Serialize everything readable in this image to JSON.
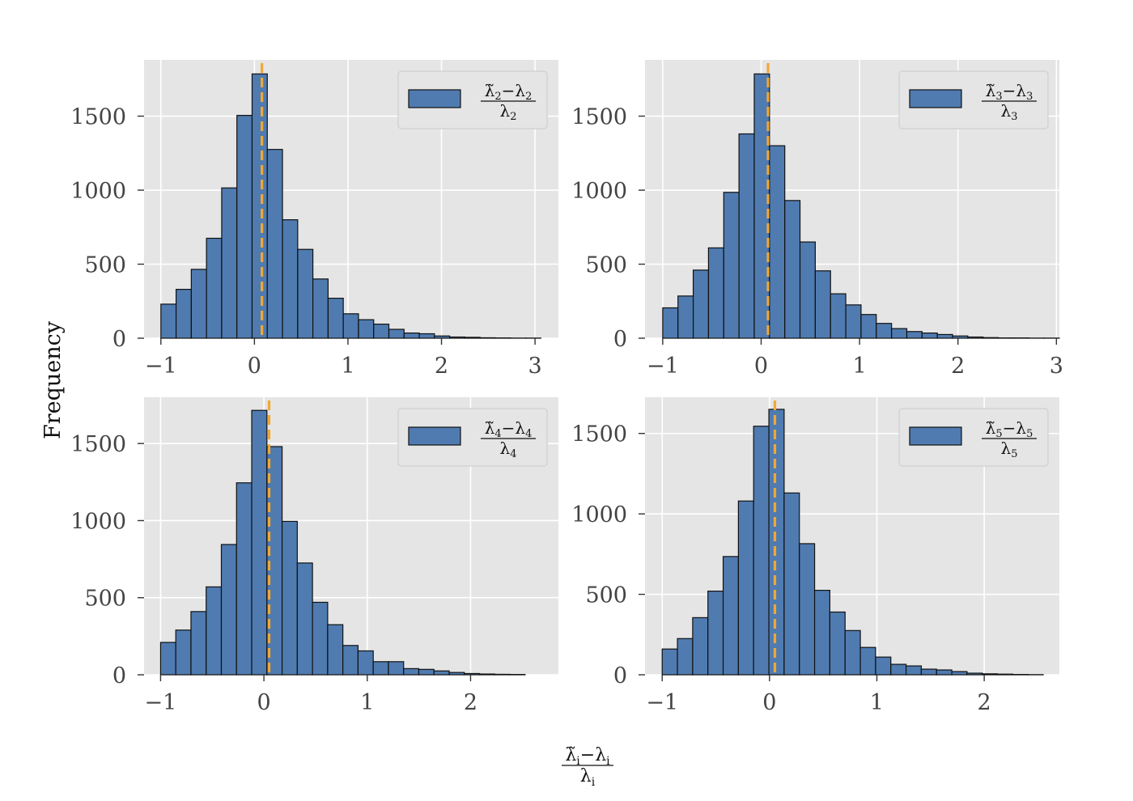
{
  "figure": {
    "ylabel": "Frequency",
    "xlabel": {
      "num_main": "λ̃",
      "num_sub1": "i",
      "num_mid": "−λ",
      "num_sub2": "i",
      "den_main": "λ",
      "den_sub": "i"
    }
  },
  "colors": {
    "bar": "#4f7bb0",
    "bar_edge": "#111111",
    "mean_line": "#f0a836",
    "panel_bg": "#e5e5e5",
    "grid": "#ffffff"
  },
  "chart_data": [
    {
      "type": "bar",
      "bin_edges": [
        -1.0,
        -0.8375,
        -0.675,
        -0.5125,
        -0.35,
        -0.1875,
        -0.025,
        0.1375,
        0.3,
        0.4625,
        0.625,
        0.7875,
        0.95,
        1.1125,
        1.275,
        1.4375,
        1.6,
        1.7625,
        1.925,
        2.0875,
        2.25,
        2.4125,
        2.575,
        2.7375,
        2.9,
        3.0625
      ],
      "values": [
        230,
        330,
        465,
        675,
        1015,
        1505,
        1785,
        1275,
        800,
        600,
        400,
        270,
        165,
        125,
        95,
        60,
        35,
        30,
        15,
        8,
        6,
        3,
        2,
        1,
        1
      ],
      "mean_line_x": 0.08,
      "xlim": [
        -1.18,
        3.25
      ],
      "ylim": [
        0,
        1880
      ],
      "xticks": [
        -1,
        0,
        1,
        2,
        3
      ],
      "xticklabels": [
        "−1",
        "0",
        "1",
        "2",
        "3"
      ],
      "yticks": [
        0,
        500,
        1000,
        1500
      ],
      "yticklabels": [
        "0",
        "500",
        "1000",
        "1500"
      ],
      "legend": {
        "num_main": "λ̃",
        "num_sub1": "2",
        "num_mid": "−λ",
        "num_sub2": "2",
        "den_main": "λ",
        "den_sub": "2"
      },
      "grid": true,
      "legend_position": "top-right"
    },
    {
      "type": "bar",
      "bin_edges": [
        -1.0,
        -0.845,
        -0.69,
        -0.535,
        -0.38,
        -0.225,
        -0.07,
        0.085,
        0.24,
        0.395,
        0.55,
        0.705,
        0.86,
        1.015,
        1.17,
        1.325,
        1.48,
        1.635,
        1.79,
        1.945,
        2.1,
        2.255,
        2.41,
        2.565,
        2.72,
        2.875,
        3.03
      ],
      "values": [
        205,
        285,
        460,
        610,
        985,
        1380,
        1785,
        1300,
        930,
        650,
        455,
        300,
        225,
        160,
        100,
        65,
        45,
        35,
        25,
        15,
        8,
        4,
        2,
        2,
        1,
        1
      ],
      "mean_line_x": 0.07,
      "xlim": [
        -1.18,
        3.03
      ],
      "ylim": [
        0,
        1880
      ],
      "xticks": [
        -1,
        0,
        1,
        2,
        3
      ],
      "xticklabels": [
        "−1",
        "0",
        "1",
        "2",
        "3"
      ],
      "yticks": [
        0,
        500,
        1000,
        1500
      ],
      "yticklabels": [
        "0",
        "500",
        "1000",
        "1500"
      ],
      "legend": {
        "num_main": "λ̃",
        "num_sub1": "3",
        "num_mid": "−λ",
        "num_sub2": "3",
        "den_main": "λ",
        "den_sub": "3"
      },
      "grid": true,
      "legend_position": "top-right"
    },
    {
      "type": "bar",
      "bin_edges": [
        -1.0,
        -0.853,
        -0.706,
        -0.559,
        -0.412,
        -0.265,
        -0.118,
        0.029,
        0.176,
        0.323,
        0.47,
        0.617,
        0.764,
        0.911,
        1.058,
        1.205,
        1.352,
        1.499,
        1.646,
        1.793,
        1.94,
        2.087,
        2.234,
        2.381,
        2.528
      ],
      "values": [
        210,
        290,
        410,
        570,
        845,
        1245,
        1715,
        1480,
        995,
        725,
        470,
        325,
        190,
        155,
        85,
        85,
        40,
        35,
        25,
        15,
        8,
        5,
        3,
        2
      ],
      "mean_line_x": 0.05,
      "xlim": [
        -1.16,
        2.85
      ],
      "ylim": [
        0,
        1800
      ],
      "xticks": [
        -1,
        0,
        1,
        2
      ],
      "xticklabels": [
        "−1",
        "0",
        "1",
        "2"
      ],
      "yticks": [
        0,
        500,
        1000,
        1500
      ],
      "yticklabels": [
        "0",
        "500",
        "1000",
        "1500"
      ],
      "legend": {
        "num_main": "λ̃",
        "num_sub1": "4",
        "num_mid": "−λ",
        "num_sub2": "4",
        "den_main": "λ",
        "den_sub": "4"
      },
      "grid": true,
      "legend_position": "top-right"
    },
    {
      "type": "bar",
      "bin_edges": [
        -1.0,
        -0.858,
        -0.716,
        -0.574,
        -0.432,
        -0.29,
        -0.148,
        -0.006,
        0.136,
        0.278,
        0.42,
        0.562,
        0.704,
        0.846,
        0.988,
        1.13,
        1.272,
        1.414,
        1.556,
        1.698,
        1.84,
        1.982,
        2.124,
        2.266,
        2.408,
        2.55
      ],
      "values": [
        160,
        225,
        355,
        520,
        735,
        1080,
        1545,
        1650,
        1130,
        815,
        525,
        390,
        275,
        170,
        110,
        65,
        55,
        35,
        30,
        20,
        10,
        6,
        4,
        2,
        1
      ],
      "mean_line_x": 0.05,
      "xlim": [
        -1.16,
        2.7
      ],
      "ylim": [
        0,
        1725
      ],
      "xticks": [
        -1,
        0,
        1,
        2
      ],
      "xticklabels": [
        "−1",
        "0",
        "1",
        "2"
      ],
      "yticks": [
        0,
        500,
        1000,
        1500
      ],
      "yticklabels": [
        "0",
        "500",
        "1000",
        "1500"
      ],
      "legend": {
        "num_main": "λ̃",
        "num_sub1": "5",
        "num_mid": "−λ",
        "num_sub2": "5",
        "den_main": "λ",
        "den_sub": "5"
      },
      "grid": true,
      "legend_position": "top-right"
    }
  ]
}
